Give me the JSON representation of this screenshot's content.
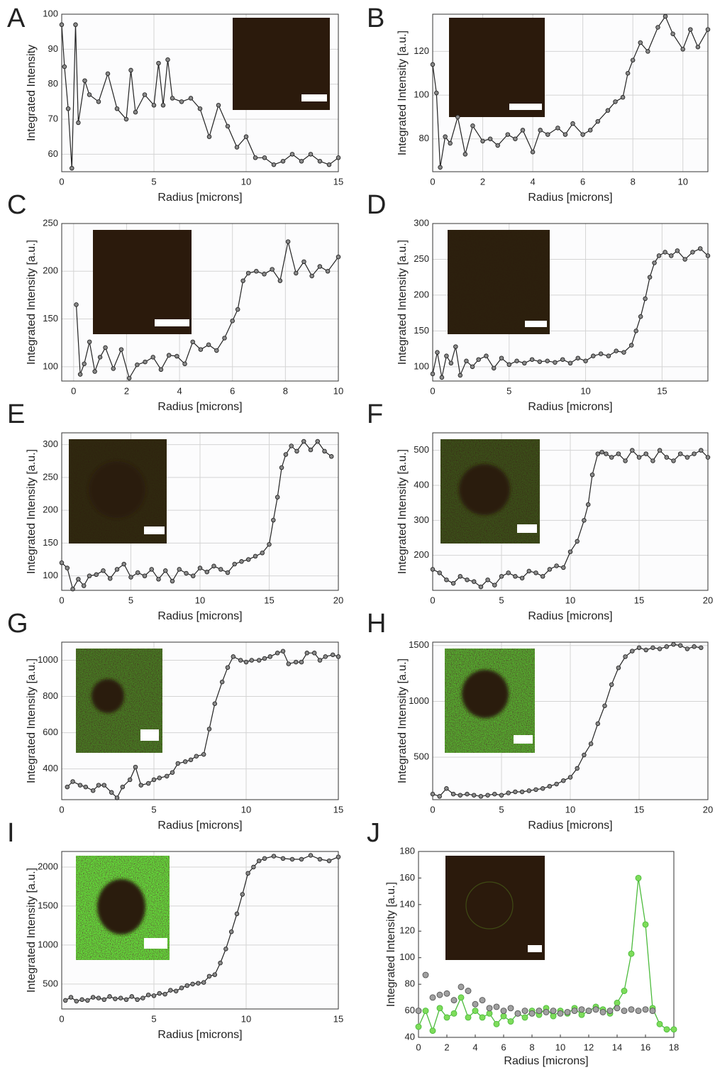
{
  "chart_data": [
    {
      "type": "line",
      "label": "A",
      "xlabel": "Radius [microns]",
      "ylabel": "Integrated Intensity",
      "xlim": [
        0,
        15
      ],
      "ylim": [
        55,
        100
      ],
      "xticks": [
        0,
        5,
        10,
        15
      ],
      "yticks": [
        60,
        70,
        80,
        90,
        100
      ],
      "grid": true,
      "x": [
        0,
        0.15,
        0.35,
        0.55,
        0.75,
        0.9,
        1.25,
        1.5,
        2,
        2.5,
        3,
        3.5,
        3.75,
        4,
        4.5,
        5,
        5.25,
        5.5,
        5.75,
        6,
        6.5,
        7,
        7.5,
        8,
        8.5,
        9,
        9.5,
        10,
        10.5,
        11,
        11.5,
        12,
        12.5,
        13,
        13.5,
        14,
        14.5,
        15
      ],
      "series": [
        {
          "color": "#222222",
          "marker_color": "#8a8a8a",
          "values": [
            97,
            85,
            73,
            56,
            97,
            69,
            81,
            77,
            75,
            83,
            73,
            70,
            84,
            72,
            77,
            74,
            86,
            74,
            87,
            76,
            75,
            76,
            73,
            65,
            74,
            68,
            62,
            65,
            59,
            59,
            57,
            58,
            60,
            58,
            60,
            58,
            57,
            59
          ]
        }
      ]
    },
    {
      "type": "line",
      "label": "B",
      "xlabel": "Radius [microns]",
      "ylabel": "Integrated Intensity [a.u.]",
      "xlim": [
        0,
        11
      ],
      "ylim": [
        65,
        137
      ],
      "xticks": [
        0,
        2,
        4,
        6,
        8,
        10
      ],
      "yticks": [
        80,
        100,
        120
      ],
      "grid": true,
      "x": [
        0,
        0.15,
        0.3,
        0.5,
        0.7,
        1,
        1.3,
        1.6,
        2,
        2.3,
        2.6,
        3,
        3.3,
        3.6,
        4,
        4.3,
        4.6,
        5,
        5.3,
        5.6,
        6,
        6.3,
        6.6,
        7,
        7.3,
        7.6,
        7.8,
        8,
        8.3,
        8.6,
        9,
        9.3,
        9.6,
        10,
        10.3,
        10.6,
        11
      ],
      "series": [
        {
          "color": "#222222",
          "marker_color": "#8a8a8a",
          "values": [
            114,
            101,
            67,
            81,
            78,
            90,
            73,
            86,
            79,
            80,
            77,
            82,
            80,
            84,
            74,
            84,
            82,
            85,
            82,
            87,
            82,
            84,
            88,
            93,
            97,
            99,
            110,
            116,
            124,
            120,
            131,
            136,
            128,
            121,
            130,
            122,
            130
          ]
        }
      ]
    },
    {
      "type": "line",
      "label": "C",
      "xlabel": "Radius [microns]",
      "ylabel": "Integrated Intensity [a.u.]",
      "xlim": [
        -0.45,
        10
      ],
      "ylim": [
        85,
        250
      ],
      "xticks": [
        0,
        2,
        4,
        6,
        8,
        10
      ],
      "yticks": [
        100,
        150,
        200,
        250
      ],
      "grid": true,
      "x": [
        0.1,
        0.25,
        0.4,
        0.6,
        0.8,
        1,
        1.2,
        1.5,
        1.8,
        2.1,
        2.4,
        2.7,
        3,
        3.3,
        3.6,
        3.9,
        4.2,
        4.5,
        4.8,
        5.1,
        5.4,
        5.7,
        6,
        6.2,
        6.4,
        6.6,
        6.9,
        7.2,
        7.5,
        7.8,
        8.1,
        8.4,
        8.7,
        9,
        9.3,
        9.6,
        10
      ],
      "series": [
        {
          "color": "#222222",
          "marker_color": "#8a8a8a",
          "values": [
            165,
            92,
            103,
            126,
            95,
            110,
            120,
            98,
            118,
            88,
            102,
            105,
            110,
            97,
            112,
            111,
            103,
            126,
            118,
            123,
            117,
            130,
            148,
            160,
            190,
            198,
            200,
            197,
            202,
            190,
            231,
            198,
            210,
            195,
            205,
            200,
            215
          ]
        }
      ]
    },
    {
      "type": "line",
      "label": "D",
      "xlabel": "Radius [microns]",
      "ylabel": "Integrated Intensity [a.u.]",
      "xlim": [
        0,
        18
      ],
      "ylim": [
        80,
        300
      ],
      "xticks": [
        0,
        5,
        10,
        15
      ],
      "yticks": [
        100,
        150,
        200,
        250,
        300
      ],
      "grid": true,
      "x": [
        0,
        0.3,
        0.6,
        0.9,
        1.2,
        1.5,
        1.8,
        2.2,
        2.6,
        3,
        3.5,
        4,
        4.5,
        5,
        5.5,
        6,
        6.5,
        7,
        7.5,
        8,
        8.5,
        9,
        9.5,
        10,
        10.5,
        11,
        11.5,
        12,
        12.5,
        13,
        13.3,
        13.6,
        13.9,
        14.2,
        14.5,
        14.8,
        15.2,
        15.6,
        16,
        16.5,
        17,
        17.5,
        18
      ],
      "series": [
        {
          "color": "#222222",
          "marker_color": "#8a8a8a",
          "values": [
            90,
            120,
            85,
            115,
            105,
            128,
            88,
            108,
            100,
            110,
            115,
            98,
            112,
            103,
            108,
            105,
            110,
            107,
            108,
            106,
            110,
            105,
            112,
            108,
            115,
            118,
            115,
            122,
            120,
            130,
            150,
            170,
            195,
            225,
            245,
            255,
            260,
            255,
            262,
            250,
            260,
            265,
            255
          ]
        }
      ]
    },
    {
      "type": "line",
      "label": "E",
      "xlabel": "Radius [microns]",
      "ylabel": "Integrated Intensity [a.u.]",
      "xlim": [
        0,
        20
      ],
      "ylim": [
        78,
        318
      ],
      "xticks": [
        0,
        5,
        10,
        15,
        20
      ],
      "yticks": [
        100,
        150,
        200,
        250,
        300
      ],
      "grid": true,
      "x": [
        0,
        0.4,
        0.8,
        1.2,
        1.6,
        2,
        2.5,
        3,
        3.5,
        4,
        4.5,
        5,
        5.5,
        6,
        6.5,
        7,
        7.5,
        8,
        8.5,
        9,
        9.5,
        10,
        10.5,
        11,
        11.5,
        12,
        12.5,
        13,
        13.5,
        14,
        14.5,
        15,
        15.3,
        15.6,
        15.9,
        16.2,
        16.6,
        17,
        17.5,
        18,
        18.5,
        19,
        19.5
      ],
      "series": [
        {
          "color": "#222222",
          "marker_color": "#8a8a8a",
          "values": [
            120,
            112,
            80,
            95,
            85,
            100,
            102,
            108,
            96,
            110,
            118,
            98,
            105,
            100,
            110,
            95,
            108,
            92,
            110,
            104,
            100,
            112,
            106,
            115,
            110,
            105,
            118,
            122,
            125,
            130,
            135,
            148,
            185,
            220,
            265,
            285,
            298,
            290,
            305,
            292,
            305,
            290,
            282
          ]
        }
      ]
    },
    {
      "type": "line",
      "label": "F",
      "xlabel": "Radius [microns]",
      "ylabel": "Integrated Intensity [a.u.]",
      "xlim": [
        0,
        20
      ],
      "ylim": [
        100,
        550
      ],
      "xticks": [
        0,
        5,
        10,
        15,
        20
      ],
      "yticks": [
        200,
        300,
        400,
        500
      ],
      "grid": true,
      "x": [
        0,
        0.5,
        1,
        1.5,
        2,
        2.5,
        3,
        3.5,
        4,
        4.5,
        5,
        5.5,
        6,
        6.5,
        7,
        7.5,
        8,
        8.5,
        9,
        9.5,
        10,
        10.5,
        11,
        11.3,
        11.6,
        12,
        12.3,
        12.6,
        13,
        13.5,
        14,
        14.5,
        15,
        15.5,
        16,
        16.5,
        17,
        17.5,
        18,
        18.5,
        19,
        19.5,
        20
      ],
      "series": [
        {
          "color": "#222222",
          "marker_color": "#8a8a8a",
          "values": [
            160,
            150,
            130,
            120,
            140,
            130,
            125,
            110,
            130,
            115,
            140,
            150,
            140,
            135,
            155,
            150,
            140,
            160,
            170,
            165,
            210,
            240,
            300,
            345,
            430,
            490,
            495,
            490,
            480,
            490,
            470,
            500,
            480,
            490,
            470,
            500,
            480,
            470,
            490,
            480,
            490,
            500,
            480
          ]
        }
      ]
    },
    {
      "type": "line",
      "label": "G",
      "xlabel": "Radius [microns]",
      "ylabel": "Integrated Intensity [a.u.]",
      "xlim": [
        0,
        15
      ],
      "ylim": [
        230,
        1100
      ],
      "xticks": [
        0,
        5,
        10,
        15
      ],
      "yticks": [
        400,
        600,
        800,
        1000
      ],
      "grid": true,
      "x": [
        0.3,
        0.6,
        1,
        1.3,
        1.7,
        2,
        2.3,
        2.7,
        3,
        3.3,
        3.7,
        4,
        4.3,
        4.7,
        5,
        5.3,
        5.7,
        6,
        6.3,
        6.7,
        7,
        7.3,
        7.7,
        8,
        8.3,
        8.7,
        9,
        9.3,
        9.7,
        10,
        10.3,
        10.7,
        11,
        11.3,
        11.7,
        12,
        12.3,
        12.7,
        13,
        13.3,
        13.7,
        14,
        14.3,
        14.7,
        15
      ],
      "series": [
        {
          "color": "#222222",
          "marker_color": "#8a8a8a",
          "values": [
            300,
            330,
            310,
            300,
            280,
            310,
            310,
            270,
            240,
            300,
            340,
            410,
            310,
            320,
            340,
            350,
            360,
            380,
            430,
            440,
            450,
            470,
            480,
            620,
            760,
            880,
            960,
            1020,
            1000,
            990,
            1000,
            1000,
            1010,
            1020,
            1040,
            1050,
            980,
            990,
            990,
            1040,
            1040,
            1000,
            1020,
            1030,
            1020
          ]
        }
      ]
    },
    {
      "type": "line",
      "label": "H",
      "xlabel": "Radius [microns]",
      "ylabel": "Integrated Intensity [a.u.]",
      "xlim": [
        0,
        20
      ],
      "ylim": [
        120,
        1530
      ],
      "xticks": [
        0,
        5,
        10,
        15,
        20
      ],
      "yticks": [
        500,
        1000,
        1500
      ],
      "grid": true,
      "x": [
        0,
        0.5,
        1,
        1.5,
        2,
        2.5,
        3,
        3.5,
        4,
        4.5,
        5,
        5.5,
        6,
        6.5,
        7,
        7.5,
        8,
        8.5,
        9,
        9.5,
        10,
        10.5,
        11,
        11.5,
        12,
        12.5,
        13,
        13.5,
        14,
        14.5,
        15,
        15.5,
        16,
        16.5,
        17,
        17.5,
        18,
        18.5,
        19,
        19.5
      ],
      "series": [
        {
          "color": "#222222",
          "marker_color": "#8a8a8a",
          "values": [
            170,
            150,
            220,
            170,
            160,
            170,
            160,
            150,
            160,
            170,
            160,
            180,
            190,
            190,
            200,
            210,
            220,
            240,
            260,
            290,
            320,
            400,
            520,
            620,
            800,
            960,
            1150,
            1300,
            1400,
            1450,
            1480,
            1460,
            1480,
            1470,
            1490,
            1510,
            1500,
            1470,
            1490,
            1480
          ]
        }
      ]
    },
    {
      "type": "line",
      "label": "I",
      "xlabel": "Radius [microns]",
      "ylabel": "Integrated Intensity [a.u.]",
      "xlim": [
        0,
        15
      ],
      "ylim": [
        180,
        2200
      ],
      "xticks": [
        0,
        5,
        10,
        15
      ],
      "yticks": [
        500,
        1000,
        1500,
        2000
      ],
      "grid": true,
      "x": [
        0.2,
        0.5,
        0.8,
        1.1,
        1.4,
        1.7,
        2,
        2.3,
        2.6,
        2.9,
        3.2,
        3.5,
        3.8,
        4.1,
        4.4,
        4.7,
        5,
        5.3,
        5.6,
        5.9,
        6.2,
        6.5,
        6.8,
        7.1,
        7.4,
        7.7,
        8,
        8.3,
        8.6,
        8.9,
        9.2,
        9.5,
        9.8,
        10.1,
        10.4,
        10.7,
        11,
        11.5,
        12,
        12.5,
        13,
        13.5,
        14,
        14.5,
        15
      ],
      "series": [
        {
          "color": "#222222",
          "marker_color": "#8a8a8a",
          "values": [
            290,
            330,
            280,
            300,
            290,
            330,
            320,
            300,
            340,
            310,
            320,
            300,
            340,
            300,
            320,
            360,
            350,
            380,
            370,
            420,
            410,
            450,
            480,
            500,
            510,
            520,
            600,
            620,
            770,
            950,
            1170,
            1400,
            1650,
            1920,
            2000,
            2080,
            2110,
            2140,
            2110,
            2100,
            2100,
            2150,
            2100,
            2080,
            2130
          ]
        }
      ]
    },
    {
      "type": "line",
      "label": "J",
      "xlabel": "Radius [microns]",
      "ylabel": "Integrated Intensity [a.u.]",
      "xlim": [
        0,
        18
      ],
      "ylim": [
        40,
        180
      ],
      "xticks": [
        0,
        2,
        4,
        6,
        8,
        10,
        12,
        14,
        16,
        18
      ],
      "yticks": [
        40,
        60,
        80,
        100,
        120,
        140,
        160,
        180
      ],
      "grid": false,
      "x": [
        0,
        0.5,
        1,
        1.5,
        2,
        2.5,
        3,
        3.5,
        4,
        4.5,
        5,
        5.5,
        6,
        6.5,
        7,
        7.5,
        8,
        8.5,
        9,
        9.5,
        10,
        10.5,
        11,
        11.5,
        12,
        12.5,
        13,
        13.5,
        14,
        14.5,
        15,
        15.5,
        16,
        16.5,
        17,
        17.5,
        18
      ],
      "series": [
        {
          "color": "#4cbb3c",
          "marker_color": "#7ddc5a",
          "line": true,
          "values": [
            48,
            60,
            45,
            62,
            55,
            58,
            70,
            55,
            60,
            55,
            58,
            50,
            56,
            52,
            58,
            55,
            60,
            57,
            62,
            56,
            60,
            58,
            62,
            57,
            60,
            63,
            61,
            58,
            66,
            75,
            103,
            160,
            125,
            62,
            50,
            46,
            46
          ]
        },
        {
          "color": "#555555",
          "marker_color": "#a0a0a0",
          "line": false,
          "values": [
            60,
            87,
            70,
            72,
            73,
            68,
            78,
            75,
            65,
            68,
            62,
            63,
            60,
            62,
            58,
            60,
            58,
            60,
            59,
            60,
            58,
            59,
            60,
            61,
            60,
            61,
            59,
            60,
            62,
            60,
            61,
            60,
            61,
            60,
            null,
            null,
            null
          ]
        }
      ]
    }
  ]
}
